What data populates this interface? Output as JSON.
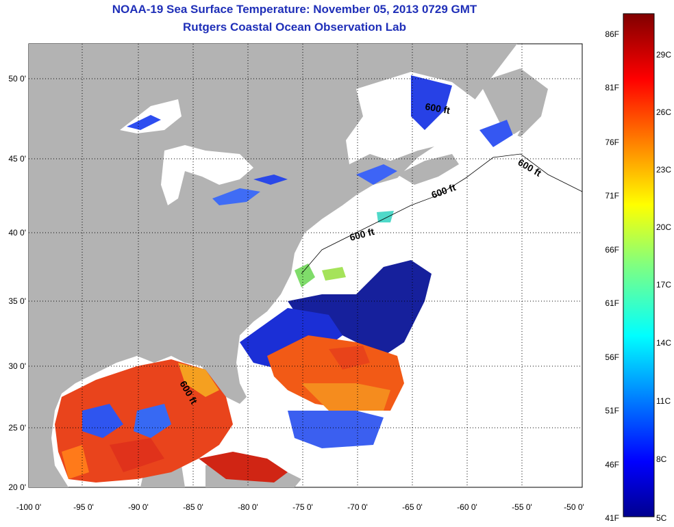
{
  "header": {
    "title": "NOAA-19 Sea Surface Temperature:  November 05, 2013 0729 GMT",
    "subtitle": "Rutgers Coastal Ocean Observation Lab"
  },
  "map": {
    "lon_ticks": [
      "-100 0'",
      "-95 0'",
      "-90 0'",
      "-85 0'",
      "-80 0'",
      "-75 0'",
      "-70 0'",
      "-65 0'",
      "-60 0'",
      "-55 0'",
      "-50 0'"
    ],
    "lat_ticks": [
      "20 0'",
      "25 0'",
      "30 0'",
      "35 0'",
      "40 0'",
      "45 0'",
      "50 0'"
    ],
    "contour_labels": [
      "600 ft",
      "600 ft",
      "600 ft",
      "600 ft",
      "600 ft"
    ],
    "colors": {
      "land": "#b3b3b3",
      "ocean_cloud": "#ffffff"
    }
  },
  "colorbar": {
    "fahrenheit": [
      "86F",
      "81F",
      "76F",
      "71F",
      "66F",
      "61F",
      "56F",
      "51F",
      "46F",
      "41F"
    ],
    "celsius": [
      "29C",
      "26C",
      "23C",
      "20C",
      "17C",
      "14C",
      "11C",
      "8C",
      "5C"
    ],
    "colormap": "jet",
    "range_c": [
      5,
      31
    ]
  }
}
